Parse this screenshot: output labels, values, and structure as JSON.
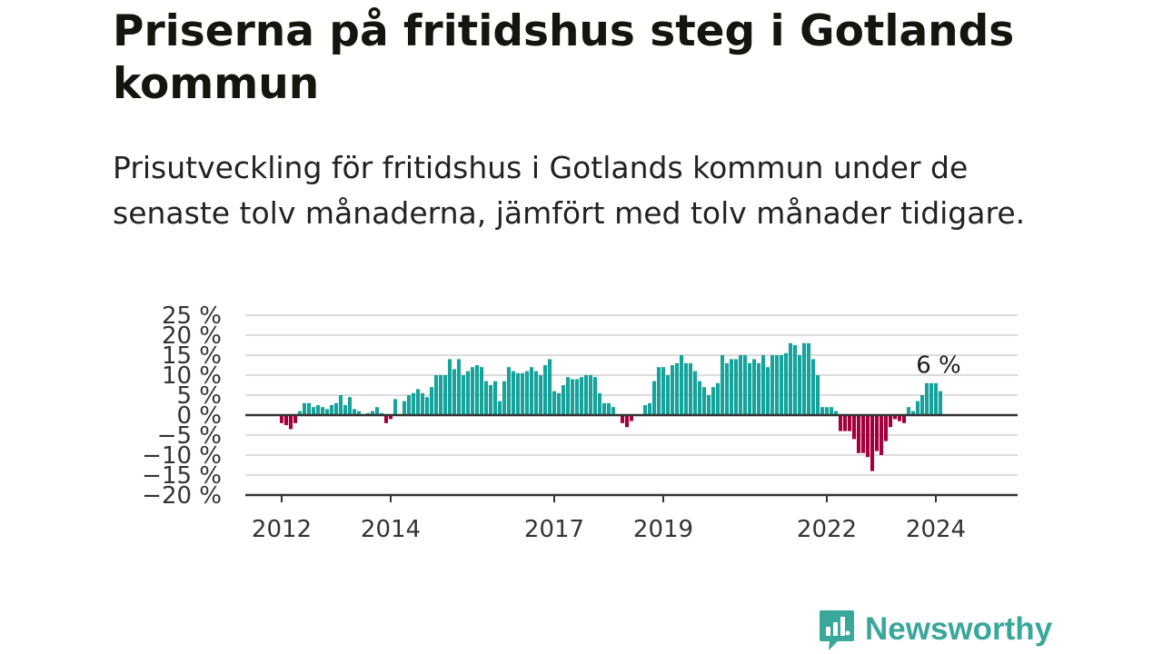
{
  "header": {
    "title": "Priserna på fritidshus steg i Gotlands kommun",
    "subtitle": "Prisutveckling för fritidshus i Gotlands kommun under de senaste tolv månaderna, jämfört med tolv månader tidigare."
  },
  "brand": {
    "name": "Newsworthy",
    "icon": "bar-chart-speech-icon",
    "color": "#3aa79b"
  },
  "chart_data": {
    "type": "bar",
    "start": "2012-01",
    "x_ticks": [
      "2012",
      "2014",
      "2017",
      "2019",
      "2022",
      "2024"
    ],
    "y_ticks": [
      "25 %",
      "20 %",
      "15 %",
      "10 %",
      "5 %",
      "0 %",
      "−5 %",
      "−10 %",
      "−15 %",
      "−20 %"
    ],
    "ylim": [
      -20,
      25
    ],
    "grid": true,
    "colors": {
      "positive": "#16a39b",
      "negative": "#a4003d"
    },
    "annotation": {
      "text": "6 %",
      "value": 6
    },
    "values": [
      -2,
      -2.5,
      -3.5,
      -2,
      1,
      3,
      3,
      2,
      2.5,
      2,
      1.5,
      2.5,
      3,
      5,
      2.5,
      4.5,
      1.5,
      1,
      0,
      0.5,
      1,
      2,
      0.5,
      -2,
      -1,
      4,
      0,
      3.5,
      5,
      5.5,
      6.5,
      5.5,
      4.5,
      7,
      10,
      10,
      10,
      14,
      11.5,
      14,
      10,
      11,
      12,
      12.5,
      12,
      8.5,
      7.5,
      8.5,
      3.5,
      8.5,
      12,
      11,
      10.5,
      10.5,
      11,
      12,
      11,
      10,
      12.5,
      14,
      6,
      5.5,
      7.5,
      9.5,
      9,
      9,
      9.5,
      10,
      10,
      9.5,
      5.5,
      3,
      3,
      2,
      0,
      -2,
      -3,
      -1.5,
      0,
      0,
      2.5,
      3,
      8.5,
      12,
      12,
      10,
      12.5,
      13,
      15,
      13,
      13,
      11,
      8.5,
      7,
      5,
      7,
      8,
      15,
      13,
      14,
      14,
      15,
      15,
      13,
      14,
      13,
      15,
      12,
      15,
      15,
      15,
      15.5,
      18,
      17.5,
      15,
      18,
      18,
      14,
      10,
      2,
      2,
      2,
      1,
      -4,
      -4,
      -4,
      -6,
      -9.5,
      -9.5,
      -10.5,
      -14,
      -9,
      -10,
      -6.5,
      -3,
      -1,
      -1.5,
      -2,
      2,
      1,
      3.5,
      5,
      8,
      8,
      8,
      6
    ]
  }
}
